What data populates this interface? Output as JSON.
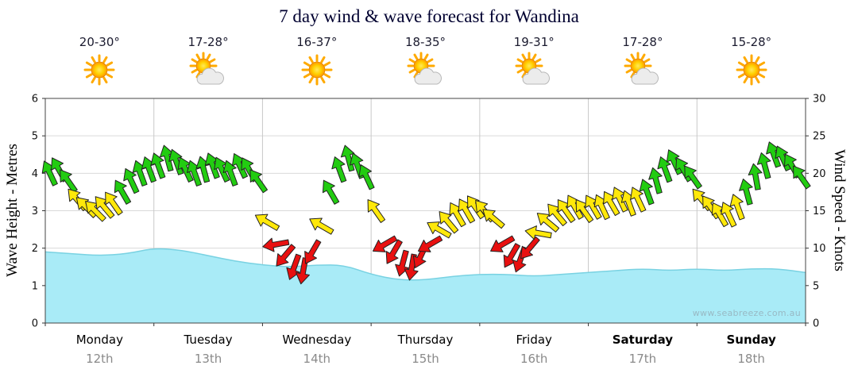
{
  "title": "7 day wind & wave forecast for Wandina",
  "watermark": "www.seabreeze.com.au",
  "days": [
    {
      "name": "Monday",
      "date": "12th",
      "temp": "20-30°",
      "icon": "sunny",
      "weekend": false
    },
    {
      "name": "Tuesday",
      "date": "13th",
      "temp": "17-28°",
      "icon": "partly-cloudy",
      "weekend": false
    },
    {
      "name": "Wednesday",
      "date": "14th",
      "temp": "16-37°",
      "icon": "sunny",
      "weekend": false
    },
    {
      "name": "Thursday",
      "date": "15th",
      "temp": "18-35°",
      "icon": "partly-cloudy",
      "weekend": false
    },
    {
      "name": "Friday",
      "date": "16th",
      "temp": "19-31°",
      "icon": "partly-cloudy",
      "weekend": false
    },
    {
      "name": "Saturday",
      "date": "17th",
      "temp": "17-28°",
      "icon": "partly-cloudy",
      "weekend": true
    },
    {
      "name": "Sunday",
      "date": "18th",
      "temp": "15-28°",
      "icon": "sunny",
      "weekend": true
    }
  ],
  "axes": {
    "left_label": "Wave Height - Metres",
    "right_label": "Wind Speed - Knots",
    "wave_ticks": [
      0,
      1,
      2,
      3,
      4,
      5,
      6
    ],
    "wind_ticks": [
      0,
      5,
      10,
      15,
      20,
      25,
      30
    ]
  },
  "chart_data": {
    "type": "area+wind-arrows",
    "title": "7 day wind & wave forecast for Wandina",
    "x_unit": "hours from Monday 00:00",
    "hours_span": 168,
    "wave_axis_range": [
      0,
      6
    ],
    "wind_axis_range": [
      0,
      30
    ],
    "grid": true,
    "wave_height_m": {
      "x_hours": [
        0,
        6,
        12,
        18,
        24,
        30,
        36,
        42,
        48,
        54,
        60,
        66,
        72,
        78,
        84,
        90,
        96,
        102,
        108,
        114,
        120,
        126,
        132,
        138,
        144,
        150,
        156,
        162,
        168
      ],
      "y": [
        1.9,
        1.85,
        1.8,
        1.85,
        2.0,
        1.95,
        1.8,
        1.65,
        1.55,
        1.5,
        1.55,
        1.55,
        1.3,
        1.15,
        1.15,
        1.25,
        1.3,
        1.3,
        1.25,
        1.3,
        1.35,
        1.4,
        1.45,
        1.4,
        1.45,
        1.4,
        1.45,
        1.45,
        1.35
      ]
    },
    "wind": {
      "x_hours": [
        1,
        3,
        5,
        7,
        9,
        11,
        13,
        15,
        17,
        19,
        21,
        23,
        25,
        27,
        29,
        31,
        33,
        35,
        37,
        39,
        41,
        43,
        45,
        47,
        49,
        51,
        53,
        55,
        57,
        59,
        61,
        63,
        65,
        67,
        69,
        71,
        73,
        75,
        77,
        79,
        81,
        83,
        85,
        87,
        89,
        91,
        93,
        95,
        97,
        99,
        101,
        103,
        105,
        107,
        109,
        111,
        113,
        115,
        117,
        119,
        121,
        123,
        125,
        127,
        129,
        131,
        133,
        135,
        137,
        139,
        141,
        143,
        145,
        147,
        149,
        151,
        153,
        155,
        157,
        159,
        161,
        163,
        165,
        167
      ],
      "speed_knots": [
        20,
        20.5,
        19,
        16.5,
        15.5,
        15,
        15.5,
        16,
        17.5,
        19,
        20,
        20.5,
        21,
        22,
        21.5,
        20.5,
        20,
        20.5,
        21,
        20.5,
        20,
        21,
        20.5,
        19,
        13.5,
        10.5,
        9,
        7.5,
        7,
        9.5,
        13,
        17.5,
        20.5,
        22,
        21,
        19.5,
        15,
        10.5,
        9.5,
        8,
        7.5,
        9,
        10.5,
        12.5,
        13.5,
        14.5,
        15,
        15.5,
        15,
        14,
        10.5,
        9,
        8.5,
        10,
        12,
        13.5,
        14.5,
        15,
        15.5,
        15,
        15.5,
        15.5,
        16,
        16.5,
        16,
        16.5,
        17.5,
        19,
        20.5,
        21.5,
        20.5,
        19.5,
        16.5,
        15.5,
        14.5,
        14.5,
        15.5,
        17.5,
        19.5,
        21,
        22.5,
        22,
        21,
        19.5
      ],
      "direction_deg": [
        -25,
        -30,
        -35,
        -40,
        -45,
        -45,
        -40,
        -35,
        -30,
        -25,
        -20,
        -20,
        -20,
        -15,
        -20,
        -25,
        -20,
        -15,
        -20,
        -25,
        -20,
        -25,
        -30,
        -35,
        -60,
        -100,
        -140,
        -160,
        -170,
        -150,
        -60,
        -30,
        -20,
        -15,
        -20,
        -25,
        -35,
        -120,
        -150,
        -165,
        -170,
        -155,
        -120,
        -60,
        -40,
        -30,
        -30,
        -35,
        -40,
        -50,
        -120,
        -150,
        -160,
        -140,
        -80,
        -50,
        -40,
        -35,
        -30,
        -35,
        -30,
        -25,
        -30,
        -25,
        -20,
        -25,
        -20,
        -15,
        -20,
        -25,
        -30,
        -35,
        -40,
        -35,
        -30,
        -25,
        -20,
        -15,
        -10,
        -15,
        -20,
        -25,
        -30,
        -35
      ]
    },
    "speed_color_thresholds": {
      "green_min": 17,
      "yellow_min": 11
    },
    "colors": {
      "wave_fill": "#A9EBF7",
      "wave_line": "#79D2E2",
      "arrow_green": "#22CC11",
      "arrow_yellow": "#FFE80A",
      "arrow_red": "#E81010",
      "grid": "#D9D9D9",
      "day_grid": "#C9C9C9"
    }
  }
}
